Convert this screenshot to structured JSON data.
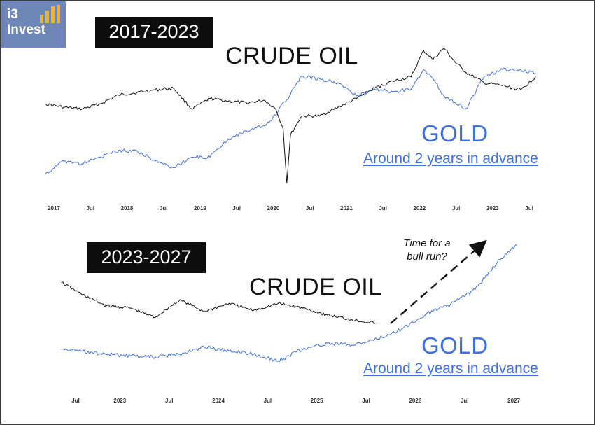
{
  "brand": {
    "name": "i3\nInvest",
    "bar_color": "#f3b323",
    "bg_color": "#6e87b8"
  },
  "colors": {
    "crude_oil": "#111111",
    "gold": "#3f6fe0"
  },
  "chart_data": [
    {
      "type": "line",
      "period_label": "2017-2023",
      "x_tick_labels": [
        "2017",
        "Jul",
        "2018",
        "Jul",
        "2019",
        "Jul",
        "2020",
        "Jul",
        "2021",
        "Jul",
        "2022",
        "Jul",
        "2023",
        "Jul"
      ],
      "x": [
        2017.0,
        2017.25,
        2017.5,
        2017.75,
        2018.0,
        2018.25,
        2018.5,
        2018.75,
        2019.0,
        2019.25,
        2019.5,
        2019.75,
        2020.0,
        2020.15,
        2020.25,
        2020.3,
        2020.35,
        2020.5,
        2020.75,
        2021.0,
        2021.25,
        2021.5,
        2021.75,
        2022.0,
        2022.17,
        2022.3,
        2022.45,
        2022.6,
        2022.75,
        2023.0,
        2023.25,
        2023.5,
        2023.7
      ],
      "series": [
        {
          "name": "CRUDE OIL",
          "values": [
            54,
            50,
            48,
            54,
            64,
            67,
            70,
            72,
            48,
            60,
            57,
            55,
            58,
            48,
            25,
            -37,
            18,
            40,
            40,
            50,
            60,
            72,
            80,
            85,
            115,
            105,
            118,
            102,
            90,
            78,
            75,
            70,
            85
          ]
        },
        {
          "name": "GOLD",
          "values": [
            1150,
            1250,
            1230,
            1280,
            1330,
            1330,
            1250,
            1200,
            1280,
            1280,
            1420,
            1480,
            1520,
            1600,
            1700,
            1720,
            1760,
            1900,
            1880,
            1850,
            1750,
            1800,
            1780,
            1800,
            1950,
            1880,
            1750,
            1700,
            1650,
            1900,
            1950,
            1950,
            1920
          ]
        }
      ]
    },
    {
      "type": "line",
      "period_label": "2023-2027",
      "x_tick_labels": [
        "Jul",
        "2023",
        "Jul",
        "2024",
        "Jul",
        "2025",
        "Jul",
        "2026",
        "Jul",
        "2027"
      ],
      "x": [
        2022.55,
        2022.75,
        2023.0,
        2023.25,
        2023.5,
        2023.75,
        2024.0,
        2024.25,
        2024.5,
        2024.75,
        2025.0,
        2025.25,
        2025.5,
        2025.75,
        2026.0,
        2026.25,
        2026.5,
        2026.75,
        2027.0,
        2027.17
      ],
      "series": [
        {
          "name": "CRUDE OIL",
          "values": [
            100,
            90,
            80,
            78,
            70,
            85,
            75,
            82,
            76,
            82,
            78,
            72,
            68,
            65,
            null,
            null,
            null,
            null,
            null,
            null
          ]
        },
        {
          "name": "GOLD",
          "values": [
            1700,
            1680,
            1650,
            1630,
            1620,
            1650,
            1720,
            1680,
            1650,
            1580,
            1700,
            1760,
            1740,
            1800,
            1900,
            2050,
            2150,
            2300,
            2600,
            2750
          ]
        }
      ]
    }
  ],
  "labels": {
    "crude": "CRUDE OIL",
    "gold": "GOLD",
    "advance": "Around 2 years in advance",
    "annotation": "Time for a\nbull run?"
  }
}
